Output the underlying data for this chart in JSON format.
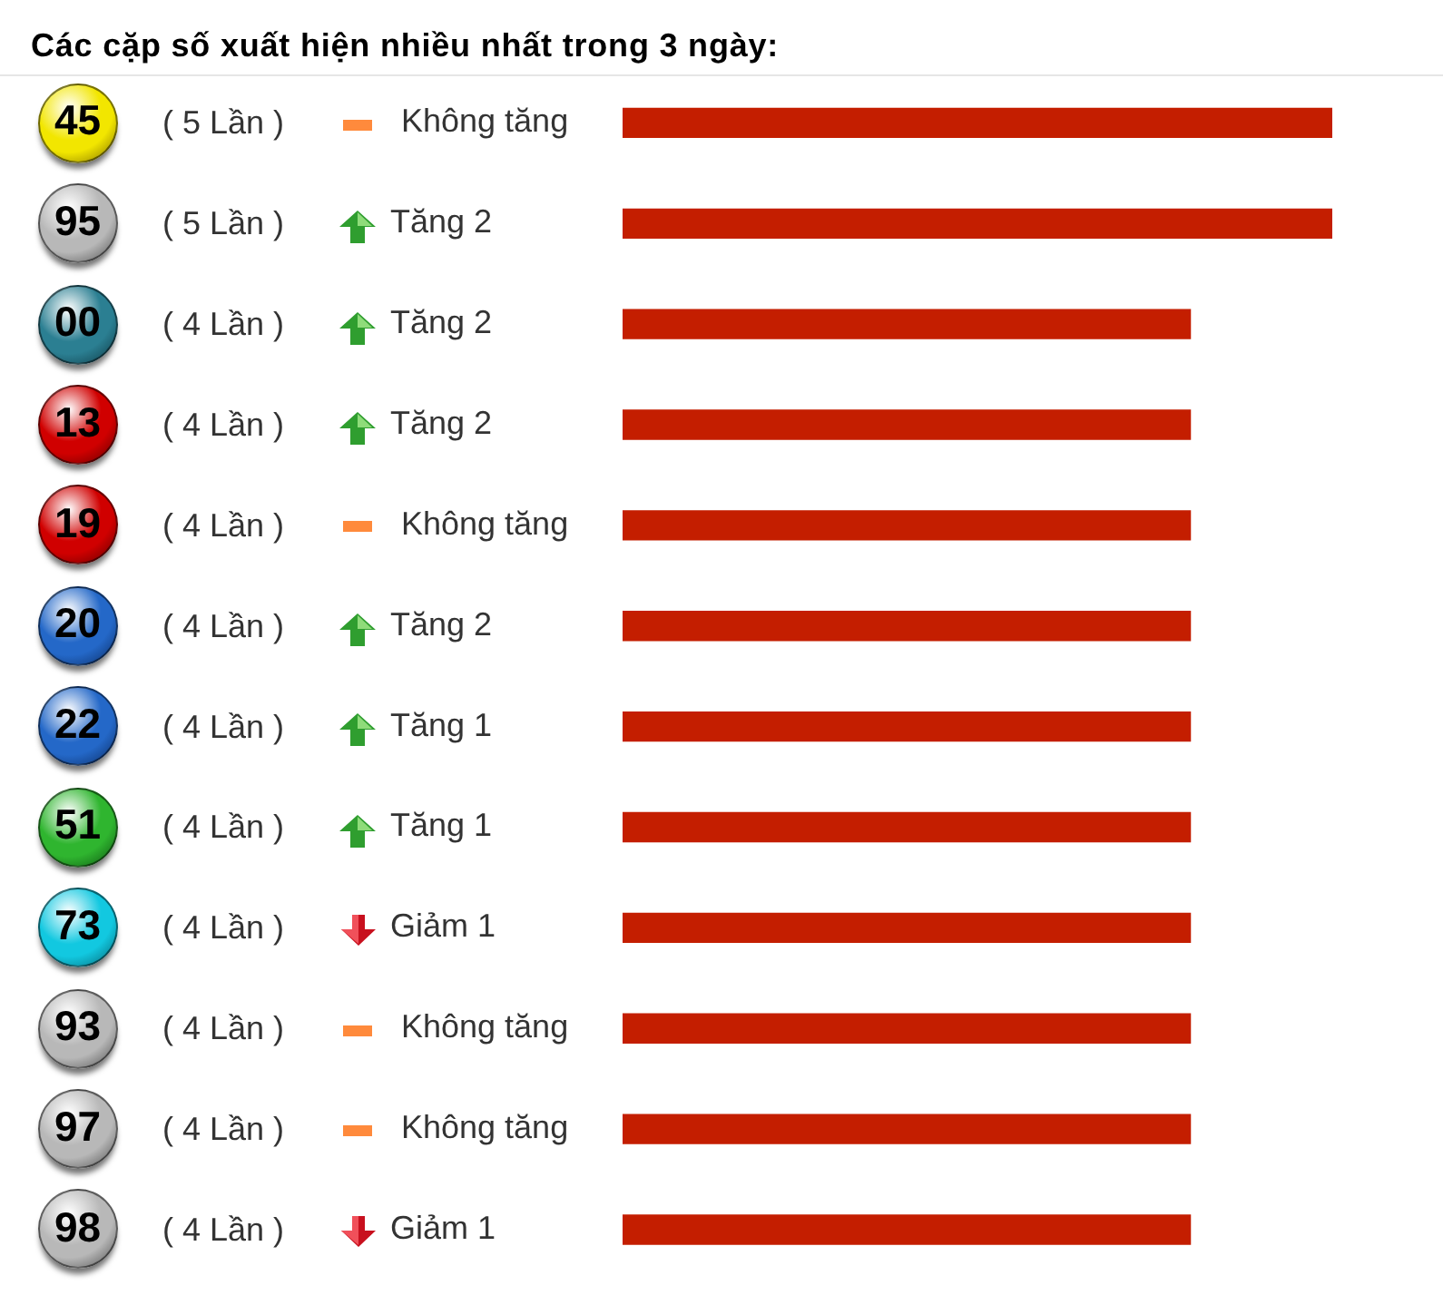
{
  "chart_data": {
    "type": "bar",
    "orientation": "horizontal",
    "title": "Các cặp số xuất hiện nhiều nhất trong 3 ngày:",
    "categories": [
      "45",
      "95",
      "00",
      "13",
      "19",
      "20",
      "22",
      "51",
      "73",
      "93",
      "97",
      "98"
    ],
    "values": [
      5,
      5,
      4,
      4,
      4,
      4,
      4,
      4,
      4,
      4,
      4,
      4
    ],
    "value_labels": [
      "( 5 Lần )",
      "( 5 Lần )",
      "( 4 Lần )",
      "( 4 Lần )",
      "( 4 Lần )",
      "( 4 Lần )",
      "( 4 Lần )",
      "( 4 Lần )",
      "( 4 Lần )",
      "( 4 Lần )",
      "( 4 Lần )",
      "( 4 Lần )"
    ],
    "color": "#c41e00",
    "tick_labels": "y",
    "annotations": [
      "Không tăng",
      "Tăng 2",
      "Tăng 2",
      "Tăng 2",
      "Không tăng",
      "Tăng 2",
      "Tăng 1",
      "Tăng 1",
      "Giảm 1",
      "Không tăng",
      "Không tăng",
      "Giảm 1"
    ]
  }
}
